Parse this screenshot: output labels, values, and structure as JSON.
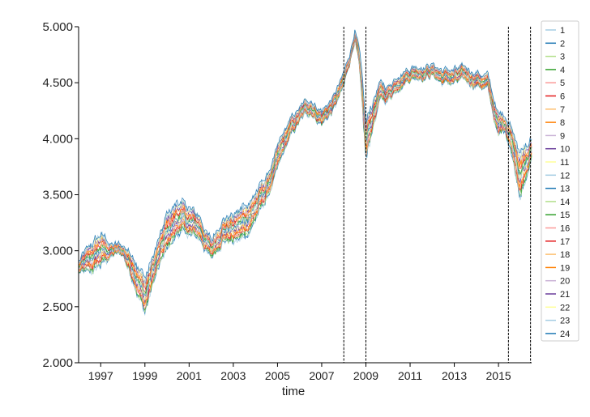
{
  "chart_data": {
    "type": "line",
    "title": "",
    "xlabel": "time",
    "ylabel": "",
    "xlim": [
      1996.0,
      2016.5
    ],
    "ylim": [
      2.0,
      5.0
    ],
    "x_ticks": [
      1997,
      1999,
      2001,
      2003,
      2005,
      2007,
      2009,
      2011,
      2013,
      2015
    ],
    "y_ticks": [
      "2.000",
      "2.500",
      "3.000",
      "3.500",
      "4.000",
      "4.500",
      "5.000"
    ],
    "grid": false,
    "legend_position": "right",
    "vertical_lines": [
      2008.0,
      2009.0,
      2015.45,
      2016.45
    ],
    "x": [
      1996.0,
      1996.5,
      1997.0,
      1997.5,
      1998.0,
      1998.5,
      1999.0,
      1999.5,
      2000.0,
      2000.5,
      2001.0,
      2001.5,
      2002.0,
      2002.5,
      2003.0,
      2003.5,
      2004.0,
      2004.5,
      2005.0,
      2005.5,
      2006.0,
      2006.5,
      2007.0,
      2007.5,
      2008.0,
      2008.3,
      2008.5,
      2008.7,
      2009.0,
      2009.3,
      2009.6,
      2010.0,
      2010.5,
      2011.0,
      2011.5,
      2012.0,
      2012.5,
      2013.0,
      2013.5,
      2014.0,
      2014.5,
      2015.0,
      2015.3,
      2015.6,
      2016.0,
      2016.3,
      2016.5
    ],
    "center": [
      2.85,
      2.9,
      3.0,
      3.0,
      3.0,
      2.85,
      2.6,
      2.9,
      3.15,
      3.3,
      3.25,
      3.2,
      3.0,
      3.2,
      3.2,
      3.25,
      3.4,
      3.55,
      3.8,
      4.05,
      4.2,
      4.3,
      4.2,
      4.3,
      4.5,
      4.75,
      4.95,
      4.7,
      3.95,
      4.2,
      4.4,
      4.4,
      4.55,
      4.6,
      4.62,
      4.62,
      4.55,
      4.55,
      4.55,
      4.55,
      4.5,
      4.1,
      4.15,
      4.0,
      3.7,
      3.8,
      3.9
    ],
    "spread": [
      0.05,
      0.12,
      0.14,
      0.05,
      0.04,
      0.12,
      0.15,
      0.12,
      0.16,
      0.14,
      0.12,
      0.1,
      0.08,
      0.1,
      0.12,
      0.14,
      0.12,
      0.1,
      0.1,
      0.08,
      0.06,
      0.06,
      0.06,
      0.06,
      0.06,
      0.04,
      0.04,
      0.08,
      0.18,
      0.12,
      0.08,
      0.06,
      0.06,
      0.05,
      0.05,
      0.05,
      0.06,
      0.06,
      0.06,
      0.06,
      0.06,
      0.1,
      0.06,
      0.12,
      0.2,
      0.14,
      0.08
    ],
    "series": [
      {
        "name": "1",
        "color": "#a6cee3"
      },
      {
        "name": "2",
        "color": "#1f78b4"
      },
      {
        "name": "3",
        "color": "#b2df8a"
      },
      {
        "name": "4",
        "color": "#33a02c"
      },
      {
        "name": "5",
        "color": "#fb9a99"
      },
      {
        "name": "6",
        "color": "#e31a1c"
      },
      {
        "name": "7",
        "color": "#fdbf6f"
      },
      {
        "name": "8",
        "color": "#ff7f00"
      },
      {
        "name": "9",
        "color": "#cab2d6"
      },
      {
        "name": "10",
        "color": "#6a3d9a"
      },
      {
        "name": "11",
        "color": "#ffff99"
      },
      {
        "name": "12",
        "color": "#a6cee3"
      },
      {
        "name": "13",
        "color": "#1f78b4"
      },
      {
        "name": "14",
        "color": "#b2df8a"
      },
      {
        "name": "15",
        "color": "#33a02c"
      },
      {
        "name": "16",
        "color": "#fb9a99"
      },
      {
        "name": "17",
        "color": "#e31a1c"
      },
      {
        "name": "18",
        "color": "#fdbf6f"
      },
      {
        "name": "19",
        "color": "#ff7f00"
      },
      {
        "name": "20",
        "color": "#cab2d6"
      },
      {
        "name": "21",
        "color": "#6a3d9a"
      },
      {
        "name": "22",
        "color": "#ffff99"
      },
      {
        "name": "23",
        "color": "#a6cee3"
      },
      {
        "name": "24",
        "color": "#1f78b4"
      }
    ]
  }
}
